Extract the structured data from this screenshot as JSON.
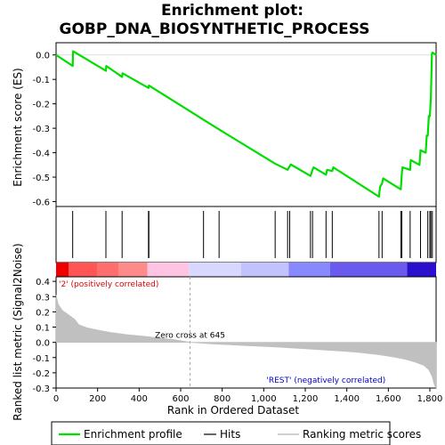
{
  "chart_data": {
    "type": "line",
    "title_line1": "Enrichment plot:",
    "title_line2": "GOBP_DNA_BIOSYNTHETIC_PROCESS",
    "es_panel": {
      "ylabel": "Enrichment score (ES)",
      "ylim": [
        -0.62,
        0.05
      ],
      "yticks": [
        0.0,
        -0.1,
        -0.2,
        -0.3,
        -0.4,
        -0.5,
        -0.6
      ],
      "ytick_labels": [
        "0.0",
        "-0.1",
        "-0.2",
        "-0.3",
        "-0.4",
        "-0.5",
        "-0.6"
      ],
      "line_color": "#00dd00",
      "points": [
        [
          0,
          0.0
        ],
        [
          80,
          -0.045
        ],
        [
          82,
          0.015
        ],
        [
          240,
          -0.065
        ],
        [
          242,
          -0.045
        ],
        [
          318,
          -0.09
        ],
        [
          320,
          -0.075
        ],
        [
          445,
          -0.135
        ],
        [
          447,
          -0.125
        ],
        [
          710,
          -0.265
        ],
        [
          785,
          -0.305
        ],
        [
          1055,
          -0.445
        ],
        [
          1115,
          -0.47
        ],
        [
          1125,
          -0.455
        ],
        [
          1130,
          -0.448
        ],
        [
          1225,
          -0.495
        ],
        [
          1235,
          -0.47
        ],
        [
          1240,
          -0.46
        ],
        [
          1300,
          -0.49
        ],
        [
          1305,
          -0.47
        ],
        [
          1330,
          -0.475
        ],
        [
          1335,
          -0.46
        ],
        [
          1555,
          -0.58
        ],
        [
          1560,
          -0.54
        ],
        [
          1570,
          -0.525
        ],
        [
          1575,
          -0.505
        ],
        [
          1660,
          -0.55
        ],
        [
          1665,
          -0.485
        ],
        [
          1668,
          -0.46
        ],
        [
          1705,
          -0.47
        ],
        [
          1708,
          -0.43
        ],
        [
          1750,
          -0.45
        ],
        [
          1755,
          -0.39
        ],
        [
          1780,
          -0.4
        ],
        [
          1785,
          -0.33
        ],
        [
          1790,
          -0.33
        ],
        [
          1795,
          -0.25
        ],
        [
          1800,
          -0.25
        ],
        [
          1805,
          -0.17
        ],
        [
          1810,
          0.005
        ],
        [
          1812,
          0.01
        ],
        [
          1830,
          0.0
        ]
      ]
    },
    "hits": [
      80,
      240,
      318,
      445,
      447,
      710,
      785,
      1055,
      1115,
      1125,
      1225,
      1235,
      1300,
      1330,
      1555,
      1570,
      1660,
      1665,
      1705,
      1755,
      1790,
      1800,
      1805,
      1812
    ],
    "metric_panel": {
      "ylabel": "Ranked list metric (Signal2Noise)",
      "xlabel": "Rank in Ordered Dataset",
      "ylim": [
        -0.3,
        0.43
      ],
      "yticks": [
        0.4,
        0.3,
        0.2,
        0.1,
        0.0,
        -0.1,
        -0.2,
        -0.3
      ],
      "ytick_labels": [
        "0.4",
        "0.3",
        "0.2",
        "0.1",
        "0.0",
        "-0.1",
        "-0.2",
        "-0.3"
      ],
      "metric_curve": [
        [
          0,
          0.31
        ],
        [
          10,
          0.25
        ],
        [
          30,
          0.21
        ],
        [
          60,
          0.18
        ],
        [
          90,
          0.15
        ],
        [
          110,
          0.115
        ],
        [
          150,
          0.095
        ],
        [
          200,
          0.08
        ],
        [
          260,
          0.065
        ],
        [
          340,
          0.05
        ],
        [
          420,
          0.04
        ],
        [
          500,
          0.028
        ],
        [
          580,
          0.015
        ],
        [
          645,
          0.0
        ],
        [
          750,
          -0.01
        ],
        [
          900,
          -0.02
        ],
        [
          1050,
          -0.03
        ],
        [
          1200,
          -0.042
        ],
        [
          1350,
          -0.055
        ],
        [
          1450,
          -0.065
        ],
        [
          1550,
          -0.08
        ],
        [
          1620,
          -0.095
        ],
        [
          1680,
          -0.11
        ],
        [
          1730,
          -0.13
        ],
        [
          1770,
          -0.15
        ],
        [
          1795,
          -0.18
        ],
        [
          1810,
          -0.22
        ],
        [
          1822,
          -0.28
        ],
        [
          1830,
          -0.3
        ]
      ],
      "fill_color": "#c0c0c0",
      "zero_cross_label": "Zero cross at 645",
      "zero_cross_x": 645,
      "positive_label": "'2' (positively correlated)",
      "positive_color": "#dd0000",
      "negative_label": "'REST' (negatively correlated)",
      "negative_color": "#0000cc"
    },
    "xlim": [
      0,
      1830
    ],
    "xticks": [
      0,
      200,
      400,
      600,
      800,
      1000,
      1200,
      1400,
      1600,
      1800
    ],
    "xtick_labels": [
      "0",
      "200",
      "400",
      "600",
      "800",
      "1,000",
      "1,200",
      "1,400",
      "1,600",
      "1,800"
    ],
    "heatbar": [
      {
        "from": 0,
        "to": 60,
        "color": "#ee0000"
      },
      {
        "from": 60,
        "to": 200,
        "color": "#ff5555"
      },
      {
        "from": 200,
        "to": 300,
        "color": "#ff6e6e"
      },
      {
        "from": 300,
        "to": 440,
        "color": "#ff8a8a"
      },
      {
        "from": 440,
        "to": 640,
        "color": "#ffc4e4"
      },
      {
        "from": 640,
        "to": 890,
        "color": "#d8d8ff"
      },
      {
        "from": 890,
        "to": 1120,
        "color": "#c2c2ff"
      },
      {
        "from": 1120,
        "to": 1320,
        "color": "#8888ff"
      },
      {
        "from": 1320,
        "to": 1690,
        "color": "#6a5aee"
      },
      {
        "from": 1690,
        "to": 1830,
        "color": "#2a10cc"
      }
    ],
    "legend": [
      {
        "label": "Enrichment profile",
        "color": "#00dd00",
        "style": "line"
      },
      {
        "label": "Hits",
        "color": "#000000",
        "style": "line"
      },
      {
        "label": "Ranking metric scores",
        "color": "#c0c0c0",
        "style": "line"
      }
    ]
  }
}
